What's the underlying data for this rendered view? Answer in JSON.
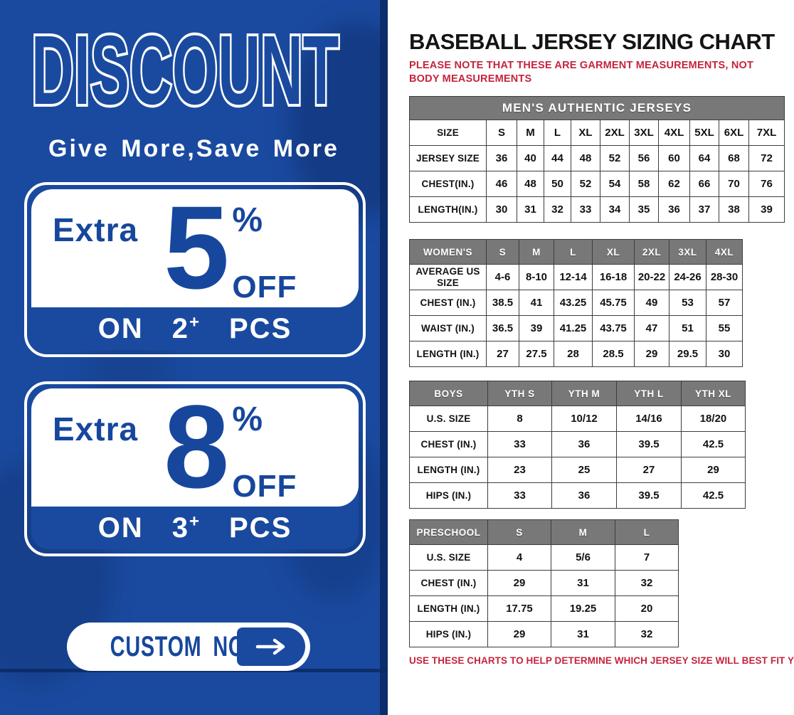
{
  "colors": {
    "banner_blue": "#1a4a9f",
    "banner_dark_edge": "#0b2a66",
    "accent_red": "#c5243d",
    "header_gray": "#787878",
    "text_black": "#141414"
  },
  "left_banner": {
    "title": "DISCOUNT",
    "tagline": "Give More,Save More",
    "offers": [
      {
        "prefix": "Extra",
        "value": "5",
        "percent": "%",
        "suffix": "OFF",
        "deal_on": "ON",
        "deal_qty": "2",
        "deal_plus": "+",
        "deal_pcs": "PCS"
      },
      {
        "prefix": "Extra",
        "value": "8",
        "percent": "%",
        "suffix": "OFF",
        "deal_on": "ON",
        "deal_qty": "3",
        "deal_plus": "+",
        "deal_pcs": "PCS"
      }
    ],
    "cta": {
      "label": "CUSTOM NOW",
      "arrow": "right-arrow"
    }
  },
  "size_chart": {
    "title": "BASEBALL JERSEY SIZING CHART",
    "note_top": "PLEASE NOTE THAT THESE ARE GARMENT MEASUREMENTS, NOT BODY MEASUREMENTS",
    "note_bottom": "USE THESE CHARTS TO HELP DETERMINE WHICH JERSEY SIZE WILL BEST FIT YOU.",
    "mens": {
      "banner": "MEN'S AUTHENTIC JERSEYS",
      "rows": [
        {
          "label": "SIZE",
          "values": [
            "S",
            "M",
            "L",
            "XL",
            "2XL",
            "3XL",
            "4XL",
            "5XL",
            "6XL",
            "7XL"
          ]
        },
        {
          "label": "JERSEY SIZE",
          "values": [
            "36",
            "40",
            "44",
            "48",
            "52",
            "56",
            "60",
            "64",
            "68",
            "72"
          ]
        },
        {
          "label": "CHEST(IN.)",
          "values": [
            "46",
            "48",
            "50",
            "52",
            "54",
            "58",
            "62",
            "66",
            "70",
            "76"
          ]
        },
        {
          "label": "LENGTH(IN.)",
          "values": [
            "30",
            "31",
            "32",
            "33",
            "34",
            "35",
            "36",
            "37",
            "38",
            "39"
          ]
        }
      ]
    },
    "womens": {
      "header": {
        "label": "WOMEN'S",
        "values": [
          "S",
          "M",
          "L",
          "XL",
          "2XL",
          "3XL",
          "4XL"
        ]
      },
      "rows": [
        {
          "label": "AVERAGE US SIZE",
          "values": [
            "4-6",
            "8-10",
            "12-14",
            "16-18",
            "20-22",
            "24-26",
            "28-30"
          ]
        },
        {
          "label": "CHEST (IN.)",
          "values": [
            "38.5",
            "41",
            "43.25",
            "45.75",
            "49",
            "53",
            "57"
          ]
        },
        {
          "label": "WAIST (IN.)",
          "values": [
            "36.5",
            "39",
            "41.25",
            "43.75",
            "47",
            "51",
            "55"
          ]
        },
        {
          "label": "LENGTH (IN.)",
          "values": [
            "27",
            "27.5",
            "28",
            "28.5",
            "29",
            "29.5",
            "30"
          ]
        }
      ]
    },
    "boys": {
      "header": {
        "label": "BOYS",
        "values": [
          "YTH S",
          "YTH M",
          "YTH L",
          "YTH XL"
        ]
      },
      "rows": [
        {
          "label": "U.S. SIZE",
          "values": [
            "8",
            "10/12",
            "14/16",
            "18/20"
          ]
        },
        {
          "label": "CHEST (IN.)",
          "values": [
            "33",
            "36",
            "39.5",
            "42.5"
          ]
        },
        {
          "label": "LENGTH (IN.)",
          "values": [
            "23",
            "25",
            "27",
            "29"
          ]
        },
        {
          "label": "HIPS (IN.)",
          "values": [
            "33",
            "36",
            "39.5",
            "42.5"
          ]
        }
      ]
    },
    "preschool": {
      "header": {
        "label": "PRESCHOOL",
        "values": [
          "S",
          "M",
          "L"
        ]
      },
      "rows": [
        {
          "label": "U.S. SIZE",
          "values": [
            "4",
            "5/6",
            "7"
          ]
        },
        {
          "label": "CHEST (IN.)",
          "values": [
            "29",
            "31",
            "32"
          ]
        },
        {
          "label": "LENGTH (IN.)",
          "values": [
            "17.75",
            "19.25",
            "20"
          ]
        },
        {
          "label": "HIPS (IN.)",
          "values": [
            "29",
            "31",
            "32"
          ]
        }
      ]
    }
  }
}
